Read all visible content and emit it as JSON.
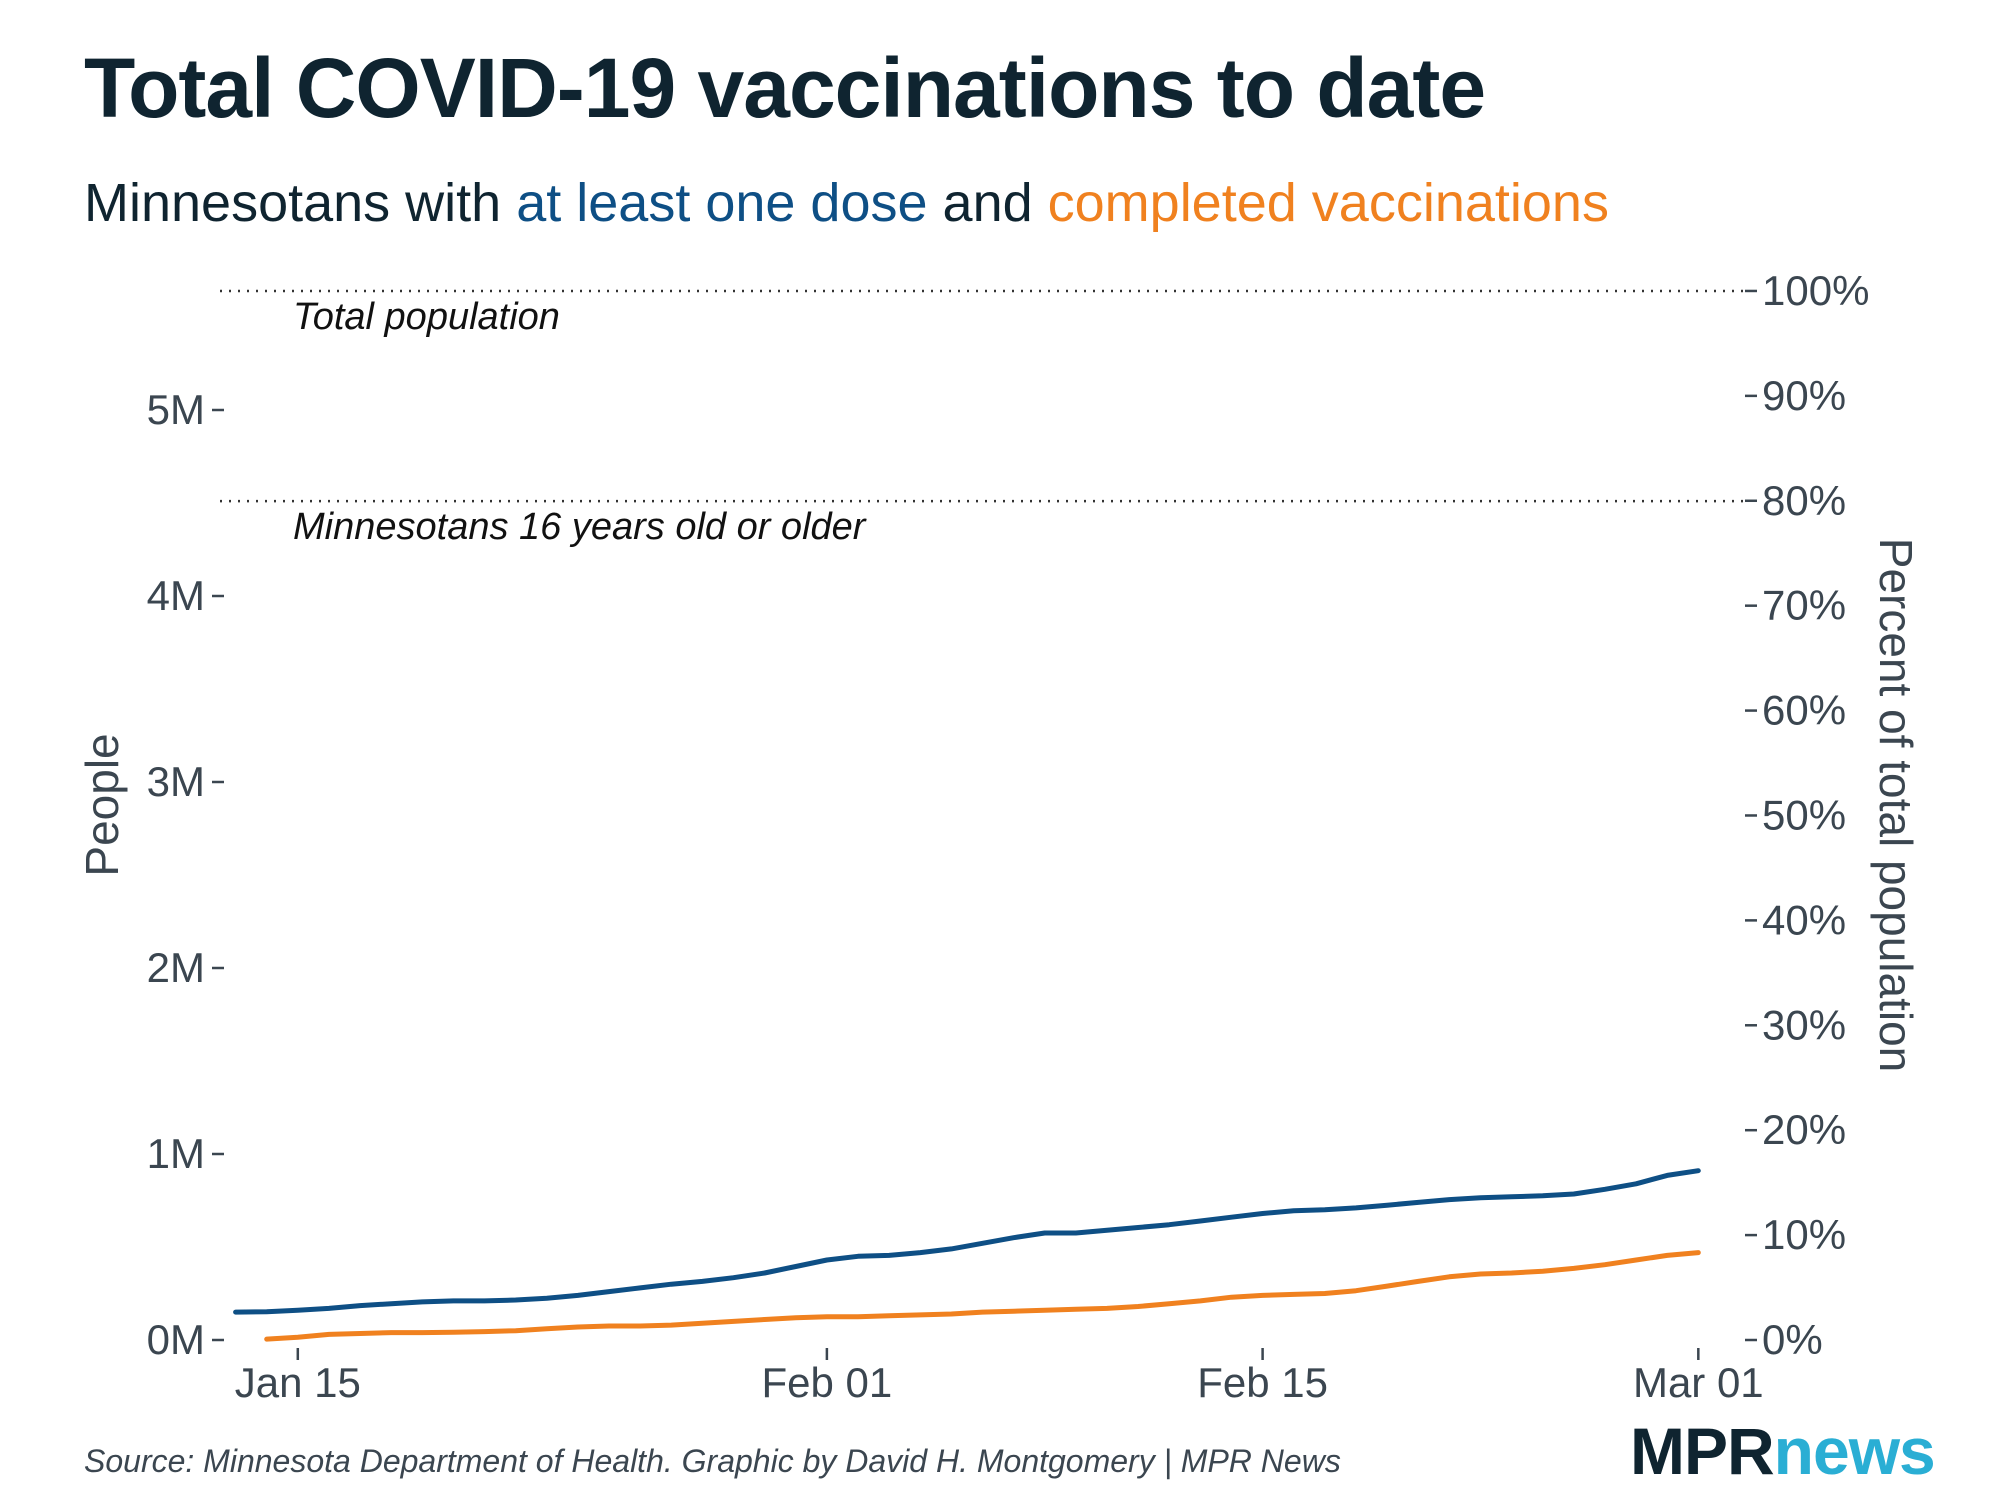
{
  "header": {
    "title": "Total COVID-19 vaccinations to date",
    "subtitle_prefix": "Minnesotans with ",
    "subtitle_series1": "at least one dose",
    "subtitle_mid": " and ",
    "subtitle_series2": "completed vaccinations"
  },
  "footer": {
    "source": "Source: Minnesota Department of Health. Graphic by David H. Montgomery | MPR News",
    "logo_mpr": "MPR",
    "logo_news": "news"
  },
  "colors": {
    "dose": "#0e4f85",
    "completed": "#f0811f",
    "text": "#0f2430",
    "axis": "#3b4650"
  },
  "chart_data": {
    "type": "line",
    "title": "Total COVID-19 vaccinations to date",
    "xlabel": "",
    "ylabel": "People",
    "ylabel_right": "Percent of total population",
    "ylim": [
      0,
      5.7
    ],
    "y_unit": "million people",
    "x_unit": "days since Jan 01, 2021",
    "x_range": [
      11.5,
      60.5
    ],
    "x_ticks": [
      {
        "day": 14,
        "label": "Jan 15"
      },
      {
        "day": 31,
        "label": "Feb 01"
      },
      {
        "day": 45,
        "label": "Feb 15"
      },
      {
        "day": 59,
        "label": "Mar 01"
      }
    ],
    "y_ticks": [
      {
        "value": 0,
        "label": "0M"
      },
      {
        "value": 1,
        "label": "1M"
      },
      {
        "value": 2,
        "label": "2M"
      },
      {
        "value": 3,
        "label": "3M"
      },
      {
        "value": 4,
        "label": "4M"
      },
      {
        "value": 5,
        "label": "5M"
      }
    ],
    "y2_ticks": [
      {
        "value": 0,
        "label": "0%"
      },
      {
        "value": 10,
        "label": "10%"
      },
      {
        "value": 20,
        "label": "20%"
      },
      {
        "value": 30,
        "label": "30%"
      },
      {
        "value": 40,
        "label": "40%"
      },
      {
        "value": 50,
        "label": "50%"
      },
      {
        "value": 60,
        "label": "60%"
      },
      {
        "value": 70,
        "label": "70%"
      },
      {
        "value": 80,
        "label": "80%"
      },
      {
        "value": 90,
        "label": "90%"
      },
      {
        "value": 100,
        "label": "100%"
      }
    ],
    "y2_max_percent": 100,
    "y2_max_people": 5.64,
    "reference_lines": [
      {
        "value": 5.64,
        "label": "Total population"
      },
      {
        "value": 4.51,
        "label": "Minnesotans 16 years old or older"
      }
    ],
    "series": [
      {
        "name": "at least one dose",
        "x": [
          12,
          13,
          14,
          15,
          16,
          17,
          18,
          19,
          20,
          21,
          22,
          23,
          24,
          25,
          26,
          27,
          28,
          29,
          30,
          31,
          32,
          33,
          34,
          35,
          36,
          37,
          38,
          39,
          40,
          41,
          42,
          43,
          44,
          45,
          46,
          47,
          48,
          49,
          50,
          51,
          52,
          53,
          54,
          55,
          56,
          57,
          58,
          59
        ],
        "values": [
          0.15,
          0.152,
          0.16,
          0.17,
          0.185,
          0.195,
          0.205,
          0.21,
          0.21,
          0.215,
          0.225,
          0.24,
          0.26,
          0.28,
          0.3,
          0.315,
          0.335,
          0.36,
          0.395,
          0.43,
          0.45,
          0.455,
          0.47,
          0.49,
          0.52,
          0.55,
          0.575,
          0.575,
          0.59,
          0.605,
          0.62,
          0.64,
          0.66,
          0.68,
          0.695,
          0.7,
          0.71,
          0.725,
          0.74,
          0.755,
          0.765,
          0.77,
          0.775,
          0.785,
          0.81,
          0.84,
          0.885,
          0.91
        ]
      },
      {
        "name": "completed vaccinations",
        "x": [
          13,
          14,
          15,
          16,
          17,
          18,
          19,
          20,
          21,
          22,
          23,
          24,
          25,
          26,
          27,
          28,
          29,
          30,
          31,
          32,
          33,
          34,
          35,
          36,
          37,
          38,
          39,
          40,
          41,
          42,
          43,
          44,
          45,
          46,
          47,
          48,
          49,
          50,
          51,
          52,
          53,
          54,
          55,
          56,
          57,
          58,
          59
        ],
        "values": [
          0.005,
          0.015,
          0.03,
          0.035,
          0.04,
          0.04,
          0.042,
          0.045,
          0.05,
          0.06,
          0.07,
          0.075,
          0.075,
          0.08,
          0.09,
          0.1,
          0.11,
          0.12,
          0.125,
          0.125,
          0.13,
          0.135,
          0.14,
          0.15,
          0.155,
          0.16,
          0.165,
          0.17,
          0.18,
          0.195,
          0.21,
          0.23,
          0.24,
          0.245,
          0.25,
          0.265,
          0.29,
          0.315,
          0.34,
          0.355,
          0.36,
          0.37,
          0.385,
          0.405,
          0.43,
          0.455,
          0.47
        ]
      }
    ]
  }
}
